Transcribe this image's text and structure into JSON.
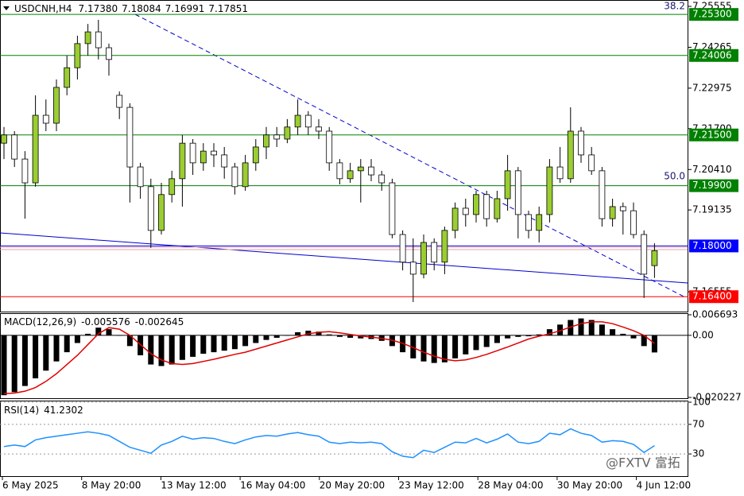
{
  "chart_data": [
    {
      "type": "candlestick",
      "title": "USDCNH,H4",
      "ohlc_labels": [
        "7.17380",
        "7.18084",
        "7.16991",
        "7.17851"
      ],
      "up_color": "#9acd32",
      "down_color": "#ffffff",
      "wick_color": "#000000",
      "grid": false,
      "ylim": [
        7.1593,
        7.2568
      ],
      "yticks": [
        7.25555,
        7.24265,
        7.22975,
        {
          "value": 7.217,
          "label": "7.21700"
        },
        {
          "value": 7.2041,
          "label": "7.20410"
        },
        7.19135,
        7.16555
      ],
      "levels": [
        {
          "value": 7.253,
          "label": "7.25300",
          "color": "#008000"
        },
        {
          "value": 7.24006,
          "label": "7.24006",
          "color": "#008000"
        },
        {
          "value": 7.215,
          "label": "7.21500",
          "color": "#008000"
        },
        {
          "value": 7.199,
          "label": "7.19900",
          "color": "#008000"
        },
        {
          "value": 7.18,
          "label": "7.18000",
          "color": "#0000ff"
        },
        {
          "value": 7.164,
          "label": "7.16400",
          "color": "#ff0000"
        }
      ],
      "annotations": [
        "38.2",
        "50.0"
      ],
      "open": [
        7.2124,
        7.215,
        7.2074,
        7.1999,
        7.2212,
        7.2187,
        7.23,
        7.2362,
        7.2438,
        7.2475,
        7.2425,
        7.2275,
        7.2237,
        7.2049,
        7.1987,
        7.1849,
        7.1962,
        7.2012,
        7.2124,
        7.2062,
        7.2099,
        7.2087,
        7.2049,
        7.1987,
        7.2062,
        7.2112,
        7.215,
        7.2137,
        7.2175,
        7.2212,
        7.2175,
        7.2162,
        7.2062,
        7.2012,
        7.2037,
        7.2049,
        7.2024,
        7.1999,
        7.1836,
        7.1749,
        7.1711,
        7.1811,
        7.1749,
        7.1849,
        7.1919,
        7.1899,
        7.1962,
        7.1886,
        7.1949,
        7.2037,
        7.1899,
        7.1849,
        7.1899,
        7.2049,
        7.2012,
        7.2162,
        7.2087,
        7.2037,
        7.1886,
        7.1924,
        7.1911,
        7.1836,
        7.1738
      ],
      "high": [
        7.2175,
        7.2162,
        7.2099,
        7.2275,
        7.2262,
        7.2325,
        7.24,
        7.2463,
        7.25,
        7.2513,
        7.2438,
        7.2287,
        7.225,
        7.2062,
        7.2012,
        7.1999,
        7.2037,
        7.215,
        7.2137,
        7.2124,
        7.2124,
        7.2112,
        7.2062,
        7.2087,
        7.2137,
        7.2175,
        7.2175,
        7.22,
        7.2262,
        7.2225,
        7.22,
        7.2175,
        7.2074,
        7.2062,
        7.2074,
        7.2074,
        7.2037,
        7.2012,
        7.1849,
        7.1824,
        7.1836,
        7.1824,
        7.1861,
        7.1937,
        7.1949,
        7.1974,
        7.1974,
        7.1974,
        7.2087,
        7.2049,
        7.1911,
        7.1924,
        7.2074,
        7.2112,
        7.2237,
        7.2175,
        7.2112,
        7.2049,
        7.1949,
        7.1937,
        7.1937,
        7.1849,
        7.18084
      ],
      "low": [
        7.2074,
        7.2049,
        7.1886,
        7.1987,
        7.2162,
        7.2162,
        7.2275,
        7.2325,
        7.24,
        7.2388,
        7.2337,
        7.22,
        7.1937,
        7.1949,
        7.1794,
        7.1836,
        7.1937,
        7.1924,
        7.2024,
        7.2037,
        7.2049,
        7.2012,
        7.1962,
        7.1974,
        7.2037,
        7.2074,
        7.2112,
        7.2124,
        7.215,
        7.215,
        7.2137,
        7.2037,
        7.1994,
        7.1999,
        7.1937,
        7.2004,
        7.1974,
        7.1824,
        7.1723,
        7.1623,
        7.1698,
        7.1723,
        7.1711,
        7.1824,
        7.1861,
        7.1874,
        7.1861,
        7.1874,
        7.1911,
        7.1824,
        7.1824,
        7.1811,
        7.1874,
        7.1999,
        7.1999,
        7.2062,
        7.2024,
        7.1861,
        7.1861,
        7.1836,
        7.1824,
        7.1636,
        7.16991
      ],
      "close": [
        7.215,
        7.2074,
        7.1999,
        7.2212,
        7.2187,
        7.23,
        7.2362,
        7.2438,
        7.2475,
        7.2425,
        7.2388,
        7.2237,
        7.2049,
        7.1987,
        7.1849,
        7.1962,
        7.2012,
        7.2124,
        7.2062,
        7.2099,
        7.2087,
        7.2049,
        7.1987,
        7.2062,
        7.2112,
        7.215,
        7.2137,
        7.2175,
        7.2212,
        7.2175,
        7.2162,
        7.2062,
        7.2012,
        7.2037,
        7.2049,
        7.2024,
        7.1999,
        7.1836,
        7.1749,
        7.1711,
        7.1811,
        7.1749,
        7.1849,
        7.1919,
        7.1899,
        7.1962,
        7.1886,
        7.1949,
        7.2037,
        7.1899,
        7.1849,
        7.1899,
        7.2049,
        7.2012,
        7.2162,
        7.2087,
        7.2037,
        7.1886,
        7.1924,
        7.1911,
        7.1836,
        7.1711,
        7.17851
      ]
    },
    {
      "type": "macd",
      "title": "MACD(12,26,9)",
      "last_labels": [
        "-0.005576",
        "-0.002645"
      ],
      "ylim": [
        -0.020227,
        0.006693
      ],
      "yticks": [
        0.006693,
        {
          "value": 0,
          "label": "0.00"
        },
        -0.020227
      ],
      "series": [
        {
          "color": "#000000",
          "values": [
            -0.0195,
            -0.0185,
            -0.0165,
            -0.014,
            -0.0115,
            -0.0085,
            -0.0055,
            -0.0025,
            0.0005,
            0.0025,
            0.002,
            0,
            -0.0035,
            -0.0065,
            -0.0095,
            -0.01,
            -0.0095,
            -0.008,
            -0.007,
            -0.006,
            -0.0055,
            -0.005,
            -0.0045,
            -0.0035,
            -0.0025,
            -0.0015,
            -0.0008,
            0,
            0.001,
            0.0015,
            0.0012,
            0.0003,
            -0.0005,
            -0.0008,
            -0.001,
            -0.0012,
            -0.0018,
            -0.0035,
            -0.0055,
            -0.0075,
            -0.0085,
            -0.009,
            -0.0088,
            -0.0075,
            -0.0062,
            -0.0048,
            -0.0038,
            -0.0025,
            -0.001,
            -0.0005,
            -0.0003,
            0.0003,
            0.002,
            0.0035,
            0.005,
            0.0055,
            0.005,
            0.0035,
            0.002,
            0.0005,
            -0.001,
            -0.0035,
            -0.005576
          ]
        },
        {
          "color": "#e00000",
          "values": [
            -0.019,
            -0.0188,
            -0.0182,
            -0.017,
            -0.015,
            -0.0125,
            -0.0095,
            -0.0065,
            -0.003,
            0.0005,
            0.0025,
            0.002,
            0,
            -0.003,
            -0.006,
            -0.008,
            -0.0092,
            -0.0095,
            -0.0092,
            -0.0085,
            -0.0078,
            -0.007,
            -0.0062,
            -0.0055,
            -0.0045,
            -0.0035,
            -0.0025,
            -0.0015,
            -0.0005,
            0.0005,
            0.001,
            0.0012,
            0.0008,
            0.0003,
            -0.0002,
            -0.0006,
            -0.001,
            -0.0016,
            -0.0026,
            -0.004,
            -0.0055,
            -0.0068,
            -0.0078,
            -0.0083,
            -0.008,
            -0.0072,
            -0.0062,
            -0.005,
            -0.0038,
            -0.0025,
            -0.0012,
            -0.0003,
            0.0005,
            0.0015,
            0.0027,
            0.0038,
            0.0044,
            0.0044,
            0.0038,
            0.0027,
            0.0015,
            0,
            -0.002645
          ]
        }
      ]
    },
    {
      "type": "rsi",
      "title": "RSI(14)",
      "last_label": "41.2302",
      "color": "#1e90ff",
      "grid": true,
      "ylim": [
        0,
        100
      ],
      "yticks": [
        100,
        70,
        30
      ],
      "values": [
        40,
        42,
        40,
        49,
        52,
        54,
        56,
        58,
        60,
        58,
        55,
        47,
        39,
        35,
        31,
        42,
        47,
        54,
        50,
        52,
        51,
        47,
        44,
        49,
        53,
        55,
        54,
        57,
        59,
        56,
        54,
        46,
        44,
        46,
        45,
        46,
        44,
        33,
        27,
        25,
        35,
        32,
        39,
        46,
        45,
        51,
        45,
        50,
        57,
        46,
        44,
        47,
        58,
        56,
        64,
        58,
        55,
        46,
        48,
        47,
        43,
        32,
        41.2302
      ],
      "x_labels": [
        "6 May 2025",
        "8 May 20:00",
        "13 May 12:00",
        "16 May 04:00",
        "20 May 20:00",
        "23 May 12:00",
        "28 May 04:00",
        "30 May 20:00",
        "4 Jun 12:00"
      ],
      "watermark": "@FXTV 富拓"
    }
  ]
}
